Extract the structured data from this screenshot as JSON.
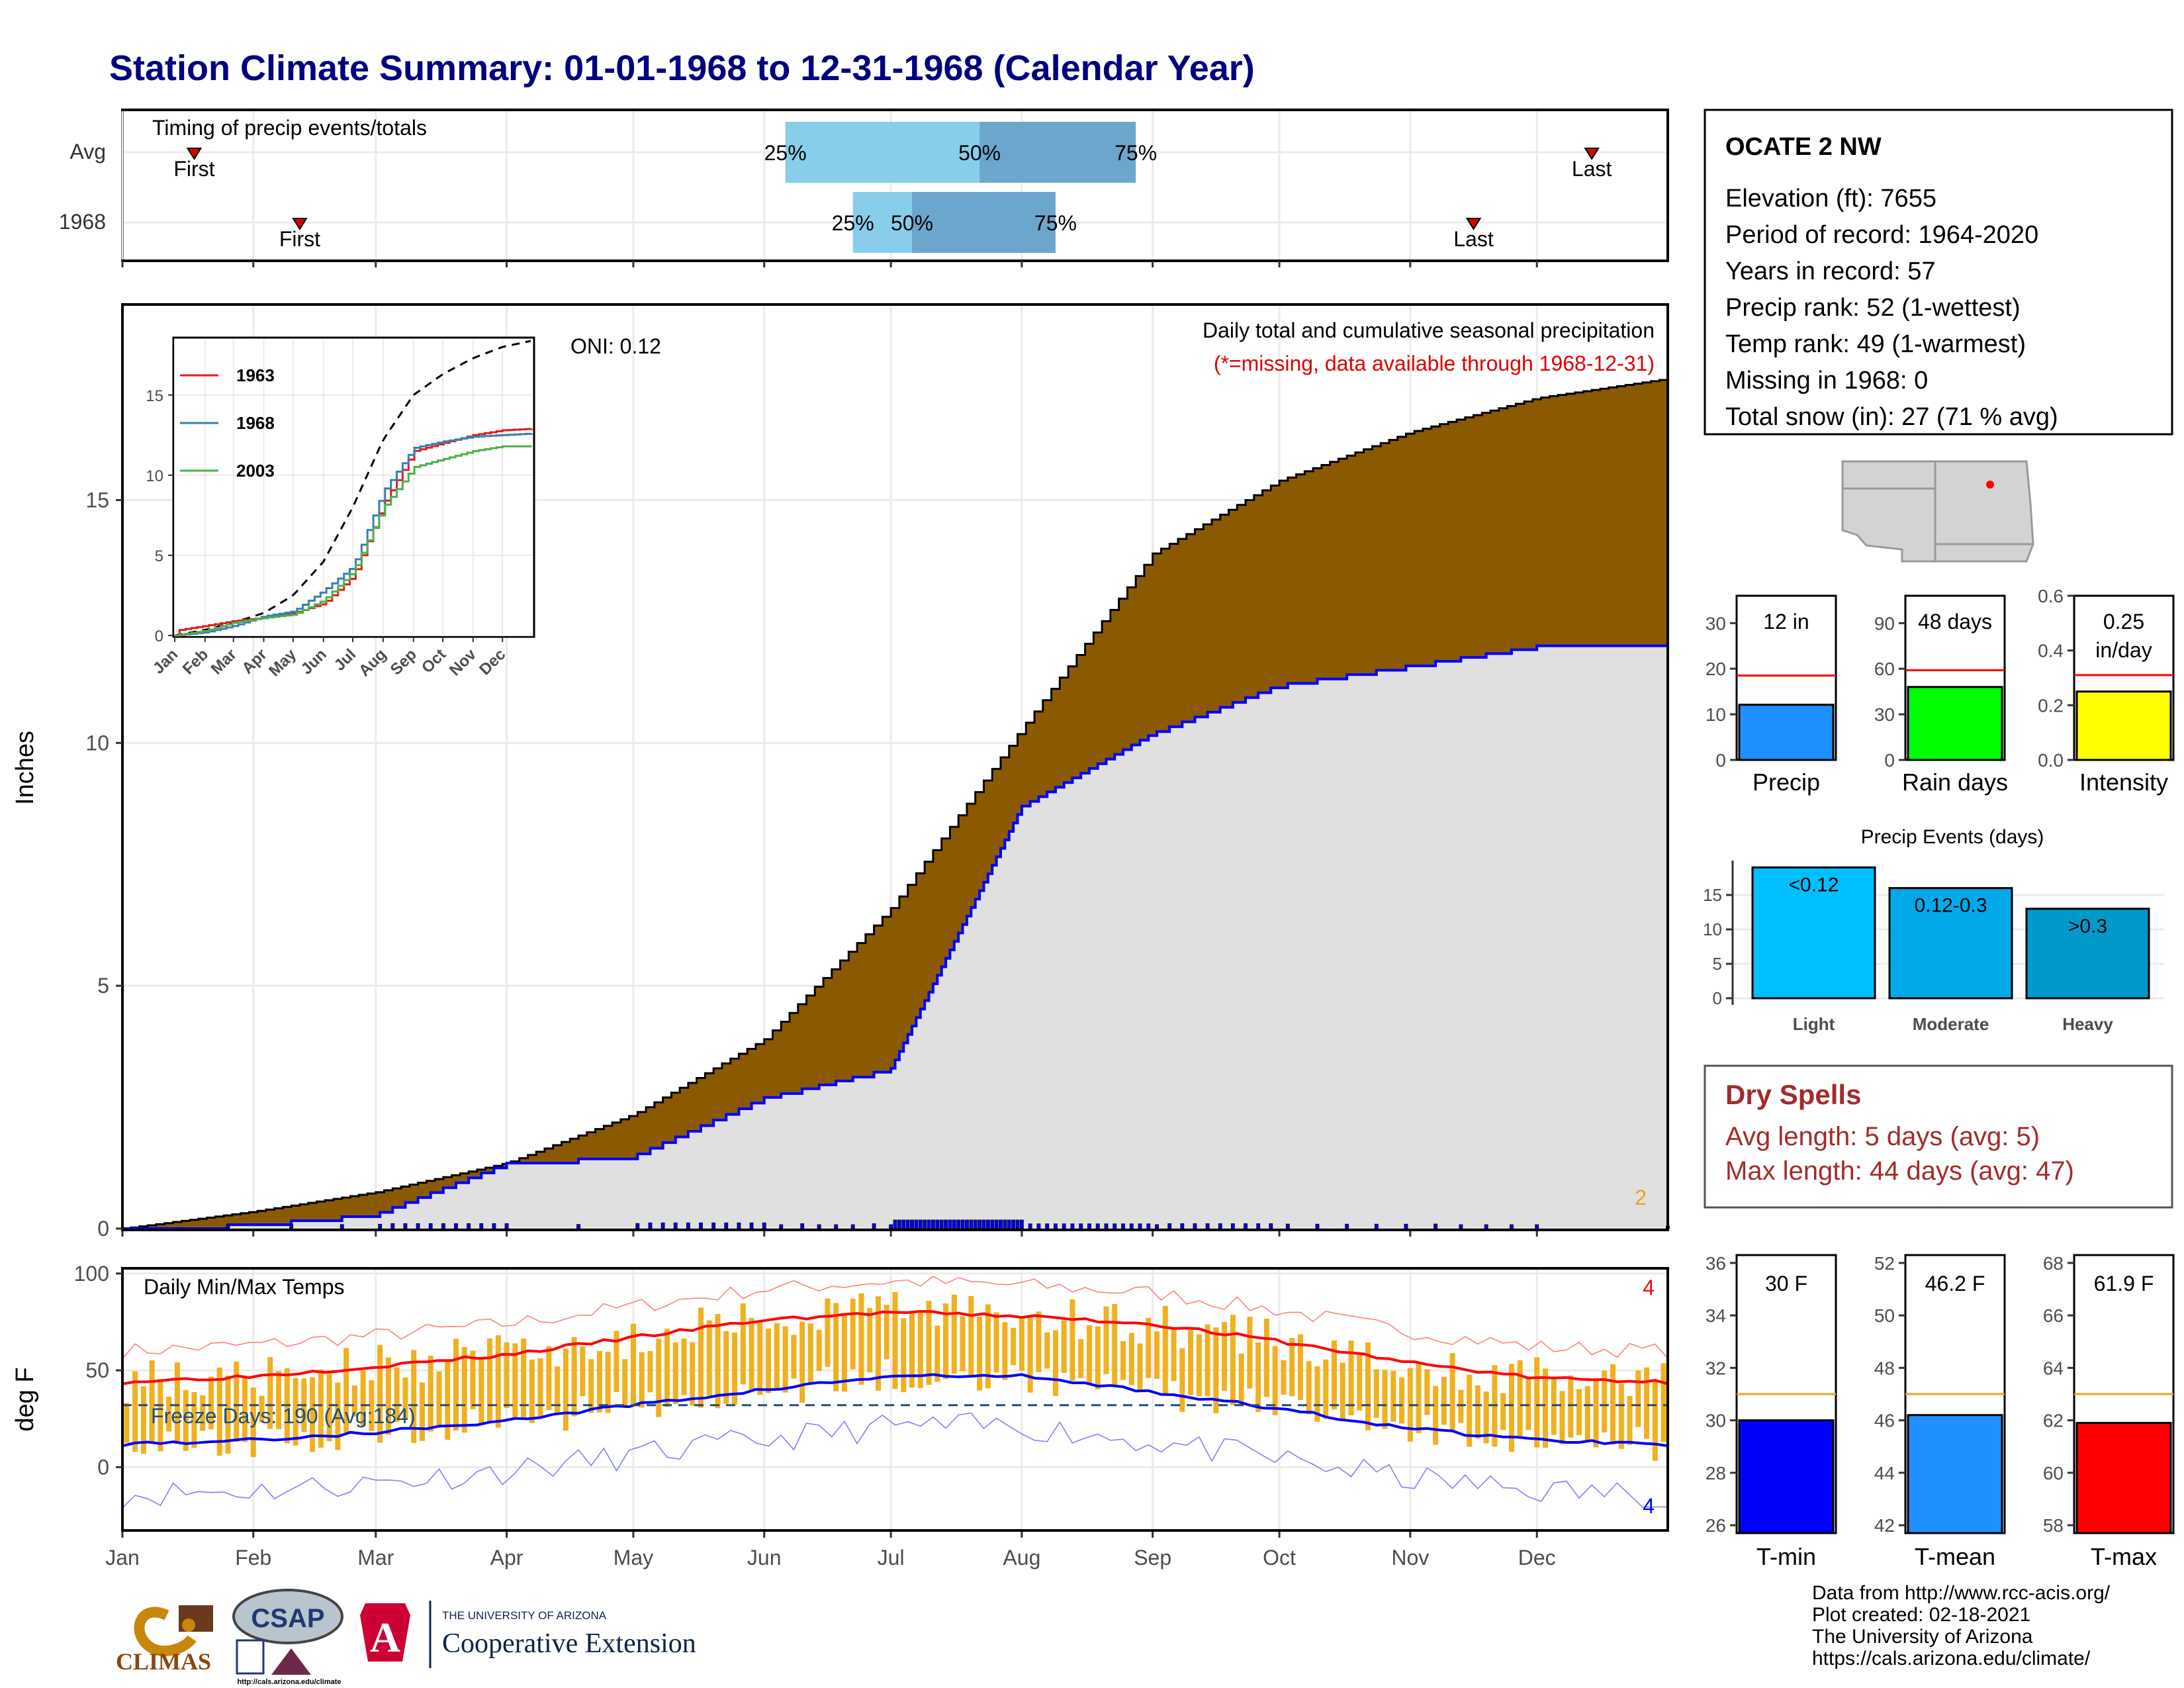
{
  "title": "Station Climate Summary: 01-01-1968 to 12-31-1968 (Calendar Year)",
  "timing_panel": {
    "label": "Timing of precip events/totals",
    "rows": [
      {
        "label": "Avg",
        "first_label": "First",
        "last_label": "Last",
        "first_day": 17,
        "last_day": 348,
        "p25_label": "25%",
        "p50_label": "50%",
        "p75_label": "75%",
        "p25_day": 157,
        "p50_day": 203,
        "p75_day": 240
      },
      {
        "label": "1968",
        "first_label": "First",
        "last_label": "Last",
        "first_day": 42,
        "last_day": 320,
        "p25_label": "25%",
        "p50_label": "50%",
        "p75_label": "75%",
        "p25_day": 173,
        "p50_day": 187,
        "p75_day": 221
      }
    ]
  },
  "precip_panel": {
    "header": "Daily total and cumulative seasonal precipitation",
    "missing_note": "(*=missing, data available through 1968-12-31)",
    "oni": "ONI: 0.12",
    "ylabel": "Inches",
    "y_ticks": [
      "0",
      "5",
      "10",
      "15"
    ],
    "count_label": "2",
    "colors": {
      "avg_fill": "#8B5A00",
      "year_fill": "#E0E0E0",
      "year_line": "#0000FF",
      "bars": "#0000FF"
    }
  },
  "inset": {
    "legend": [
      {
        "name": "1963",
        "color": "#E41A1C"
      },
      {
        "name": "1968",
        "color": "#377EB8"
      },
      {
        "name": "2003",
        "color": "#4DAF4A"
      }
    ],
    "y_ticks": [
      "0",
      "5",
      "10",
      "15"
    ],
    "months": [
      "Jan",
      "Feb",
      "Mar",
      "Apr",
      "May",
      "Jun",
      "Jul",
      "Aug",
      "Sep",
      "Oct",
      "Nov",
      "Dec"
    ]
  },
  "temp_panel": {
    "label": "Daily Min/Max Temps",
    "freeze": "Freeze Days: 190 (Avg:184)",
    "ylabel": "deg F",
    "y_ticks": [
      "0",
      "50",
      "100"
    ],
    "top_count": "4",
    "bottom_count": "4",
    "colors": {
      "bars": "#F0B020",
      "max_line": "#FF0000",
      "min_line": "#0000FF"
    }
  },
  "months": [
    "Jan",
    "Feb",
    "Mar",
    "Apr",
    "May",
    "Jun",
    "Jul",
    "Aug",
    "Sep",
    "Oct",
    "Nov",
    "Dec"
  ],
  "station": {
    "name": "OCATE 2 NW",
    "lines": [
      "Elevation (ft): 7655",
      "Period of record: 1964-2020",
      "Years in record: 57",
      "Precip rank: 52 (1-wettest)",
      "Temp rank: 49 (1-warmest)",
      "Missing in 1968: 0",
      "Total snow (in): 27 (71 % avg)"
    ]
  },
  "summary_bars": [
    {
      "label": "Precip",
      "value_label": "12 in",
      "value": 12.1,
      "avg": 18.5,
      "ticks": [
        "0",
        "10",
        "20",
        "30"
      ],
      "ymax": 36,
      "color": "#1E90FF"
    },
    {
      "label": "Rain days",
      "value_label": "48 days",
      "value": 48,
      "avg": 59,
      "ticks": [
        "0",
        "30",
        "60",
        "90"
      ],
      "ymax": 108,
      "color": "#00FF00"
    },
    {
      "label": "Intensity",
      "value_label": "0.25",
      "value_label2": "in/day",
      "value": 0.25,
      "avg": 0.31,
      "ticks": [
        "0.0",
        "0.2",
        "0.4",
        "0.6"
      ],
      "ymax": 0.6,
      "color": "#FFFF00"
    }
  ],
  "events": {
    "title": "Precip Events (days)",
    "ticks": [
      "0",
      "5",
      "10",
      "15"
    ],
    "bars": [
      {
        "label": "Light",
        "value_label": "<0.12",
        "value": 19,
        "color": "#00BFFF"
      },
      {
        "label": "Moderate",
        "value_label": "0.12-0.3",
        "value": 16,
        "color": "#00AAE8"
      },
      {
        "label": "Heavy",
        "value_label": ">0.3",
        "value": 13,
        "color": "#0099CC"
      }
    ]
  },
  "dry_spells": {
    "title": "Dry Spells",
    "avg": "Avg length: 5 days (avg: 5)",
    "max": "Max length: 44 days (avg: 47)"
  },
  "temp_bars": [
    {
      "label": "T-min",
      "value_label": "30 F",
      "value": 30,
      "avg": 31,
      "ymin": 25.7,
      "ymax": 36.3,
      "ticks": [
        "26",
        "28",
        "30",
        "32",
        "34",
        "36"
      ],
      "color": "#0000FF"
    },
    {
      "label": "T-mean",
      "value_label": "46.2 F",
      "value": 46.2,
      "avg": 47,
      "ymin": 41.7,
      "ymax": 52.3,
      "ticks": [
        "42",
        "44",
        "46",
        "48",
        "50",
        "52"
      ],
      "color": "#1E90FF"
    },
    {
      "label": "T-max",
      "value_label": "61.9 F",
      "value": 61.9,
      "avg": 63,
      "ymin": 57.7,
      "ymax": 68.3,
      "ticks": [
        "58",
        "60",
        "62",
        "64",
        "66",
        "68"
      ],
      "color": "#FF0000"
    }
  ],
  "credits": [
    "Data from http://www.rcc-acis.org/",
    "Plot created: 02-18-2021",
    "The University of Arizona",
    "https://cals.arizona.edu/climate/"
  ],
  "logos": {
    "climas": "CLIMAS",
    "csap": "CSAP",
    "csap_url": "http://cals.arizona.edu/climate",
    "ua_small": "THE UNIVERSITY OF ARIZONA",
    "ua_big": "Cooperative Extension"
  },
  "chart_data": [
    {
      "type": "area",
      "title": "Daily total and cumulative seasonal precipitation",
      "ylabel": "Inches",
      "ylim": [
        0,
        19
      ],
      "x": [
        "Jan",
        "Feb",
        "Mar",
        "Apr",
        "May",
        "Jun",
        "Jul",
        "Aug",
        "Sep",
        "Oct",
        "Nov",
        "Dec",
        "Dec-31"
      ],
      "series": [
        {
          "name": "Avg",
          "values": [
            0,
            0.35,
            0.75,
            1.35,
            2.35,
            3.9,
            6.6,
            10.3,
            13.9,
            15.4,
            16.4,
            17.1,
            17.5
          ]
        },
        {
          "name": "1968",
          "values": [
            0,
            0.1,
            0.3,
            1.35,
            1.5,
            2.7,
            3.3,
            8.7,
            10.2,
            11.2,
            11.6,
            12.0,
            12.05
          ]
        }
      ]
    },
    {
      "type": "line",
      "title": "Daily Min/Max Temps",
      "ylabel": "deg F",
      "ylim": [
        -32,
        102
      ],
      "x": [
        "Jan",
        "Feb",
        "Mar",
        "Apr",
        "May",
        "Jun",
        "Jul",
        "Aug",
        "Sep",
        "Oct",
        "Nov",
        "Dec",
        "Dec-31"
      ],
      "series": [
        {
          "name": "Avg max",
          "values": [
            44,
            47,
            52,
            58,
            67,
            76,
            80,
            78,
            74,
            65,
            54,
            46,
            44
          ]
        },
        {
          "name": "Avg min",
          "values": [
            12,
            14,
            18,
            24,
            32,
            40,
            47,
            47,
            39,
            30,
            20,
            14,
            12
          ]
        },
        {
          "name": "Freeze line",
          "values": [
            32,
            32,
            32,
            32,
            32,
            32,
            32,
            32,
            32,
            32,
            32,
            32,
            32
          ]
        }
      ]
    },
    {
      "type": "bar",
      "categories": [
        "Light",
        "Moderate",
        "Heavy"
      ],
      "values": [
        19,
        16,
        13
      ],
      "title": "Precip Events (days)",
      "ylim": [
        0,
        20
      ]
    }
  ]
}
